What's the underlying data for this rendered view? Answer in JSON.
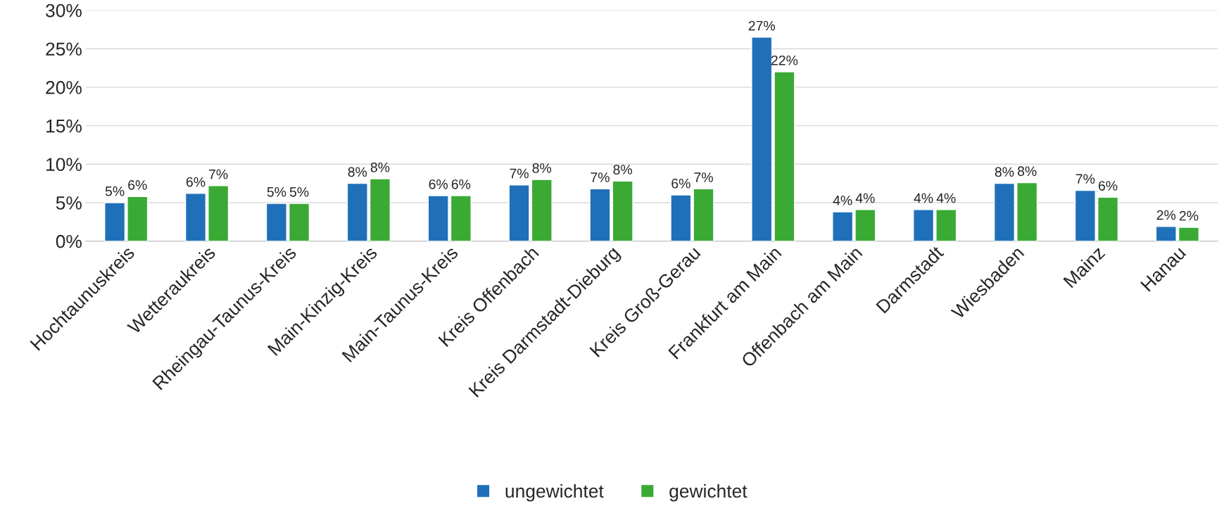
{
  "chart_data": {
    "type": "bar",
    "categories": [
      "Hochtaunuskreis",
      "Wetteraukreis",
      "Rheingau-Taunus-Kreis",
      "Main-Kinzig-Kreis",
      "Main-Taunus-Kreis",
      "Kreis Offenbach",
      "Kreis Darmstadt-Dieburg",
      "Kreis Groß-Gerau",
      "Frankfurt am Main",
      "Offenbach am Main",
      "Darmstadt",
      "Wiesbaden",
      "Mainz",
      "Hanau"
    ],
    "series": [
      {
        "name": "ungewichtet",
        "color": "#1f70b9",
        "values": [
          5.0,
          6.2,
          4.9,
          7.5,
          5.9,
          7.3,
          6.8,
          6.0,
          26.5,
          3.8,
          4.1,
          7.5,
          6.6,
          1.9
        ],
        "value_labels": [
          "5%",
          "6%",
          "5%",
          "8%",
          "6%",
          "7%",
          "7%",
          "6%",
          "27%",
          "4%",
          "4%",
          "8%",
          "7%",
          "2%"
        ]
      },
      {
        "name": "gewichtet",
        "color": "#3aaa35",
        "values": [
          5.8,
          7.2,
          4.9,
          8.1,
          5.9,
          8.0,
          7.8,
          6.8,
          22.0,
          4.1,
          4.1,
          7.6,
          5.7,
          1.8
        ],
        "value_labels": [
          "6%",
          "7%",
          "5%",
          "8%",
          "6%",
          "8%",
          "8%",
          "7%",
          "22%",
          "4%",
          "4%",
          "8%",
          "6%",
          "2%"
        ]
      }
    ],
    "ylim": [
      0,
      30
    ],
    "yticks": [
      {
        "value": 0,
        "label": "0%"
      },
      {
        "value": 5,
        "label": "5%"
      },
      {
        "value": 10,
        "label": "10%"
      },
      {
        "value": 15,
        "label": "15%"
      },
      {
        "value": 20,
        "label": "20%"
      },
      {
        "value": 25,
        "label": "25%"
      },
      {
        "value": 30,
        "label": "30%"
      }
    ],
    "grid": "y",
    "legend": "bottom"
  }
}
